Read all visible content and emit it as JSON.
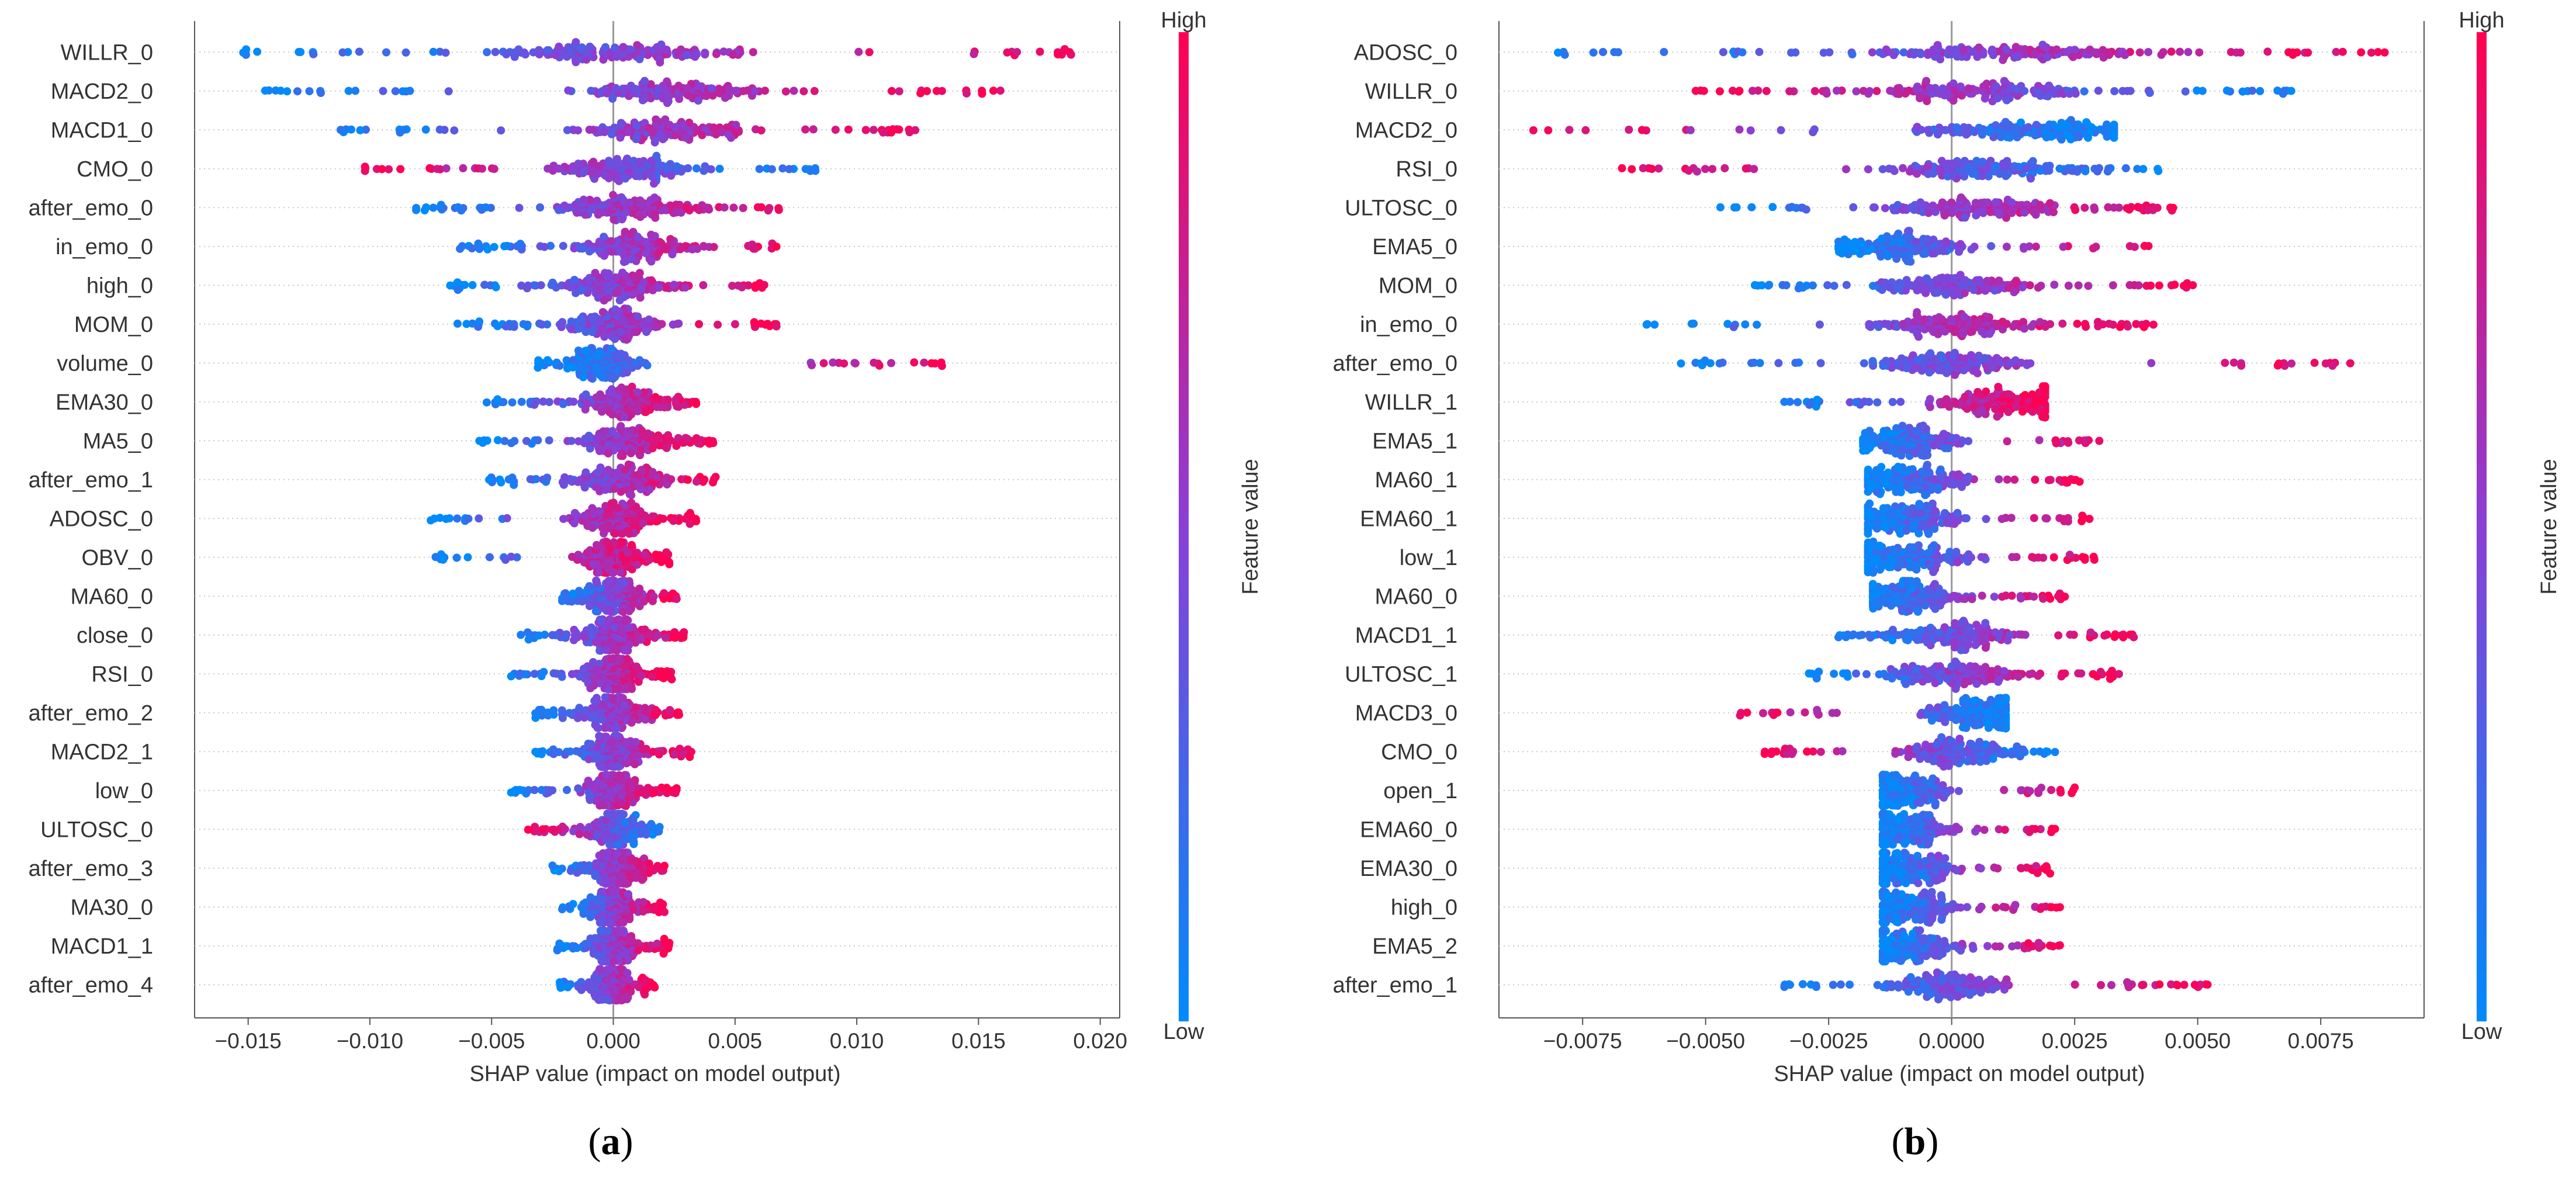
{
  "chart_data": [
    {
      "type": "scatter",
      "subtype": "shap_beeswarm",
      "panel_label": "(a)",
      "panel_letter": "a",
      "xlabel": "SHAP value (impact on model output)",
      "xlim": [
        -0.0172,
        0.0208
      ],
      "xticks": [
        -0.015,
        -0.01,
        -0.005,
        0.0,
        0.005,
        0.01,
        0.015,
        0.02
      ],
      "xtick_labels": [
        "−0.015",
        "−0.010",
        "−0.005",
        "0.000",
        "0.005",
        "0.010",
        "0.015",
        "0.020"
      ],
      "colorbar": {
        "label": "Feature value",
        "high": "High",
        "low": "Low",
        "low_color": "#008bfb",
        "high_color": "#ff0052"
      },
      "features": [
        {
          "name": "WILLR_0",
          "min": -0.0152,
          "max": 0.0188,
          "center": 0.0,
          "spread": 0.004,
          "corr": 1
        },
        {
          "name": "MACD2_0",
          "min": -0.0143,
          "max": 0.0159,
          "center": 0.0025,
          "spread": 0.003,
          "corr": 1
        },
        {
          "name": "MACD1_0",
          "min": -0.0112,
          "max": 0.0124,
          "center": 0.002,
          "spread": 0.0025,
          "corr": 1
        },
        {
          "name": "CMO_0",
          "min": -0.0102,
          "max": 0.0083,
          "center": 0.0005,
          "spread": 0.002,
          "corr": -1
        },
        {
          "name": "after_emo_0",
          "min": -0.0081,
          "max": 0.0068,
          "center": 0.0005,
          "spread": 0.002,
          "corr": 1
        },
        {
          "name": "in_emo_0",
          "min": -0.0063,
          "max": 0.0067,
          "center": 0.001,
          "spread": 0.0018,
          "corr": 1
        },
        {
          "name": "high_0",
          "min": -0.0067,
          "max": 0.0062,
          "center": 0.0,
          "spread": 0.0018,
          "corr": 1
        },
        {
          "name": "MOM_0",
          "min": -0.0064,
          "max": 0.0067,
          "center": 0.0,
          "spread": 0.0016,
          "corr": 1
        },
        {
          "name": "volume_0",
          "min": -0.0031,
          "max": 0.0135,
          "center": -0.0005,
          "spread": 0.0012,
          "corr": 1
        },
        {
          "name": "EMA30_0",
          "min": -0.0052,
          "max": 0.0034,
          "center": 0.0005,
          "spread": 0.0015,
          "corr": 1
        },
        {
          "name": "MA5_0",
          "min": -0.0055,
          "max": 0.0041,
          "center": 0.0005,
          "spread": 0.0015,
          "corr": 1
        },
        {
          "name": "after_emo_1",
          "min": -0.0051,
          "max": 0.0042,
          "center": 0.0003,
          "spread": 0.0014,
          "corr": 1
        },
        {
          "name": "ADOSC_0",
          "min": -0.0075,
          "max": 0.0034,
          "center": 0.0,
          "spread": 0.0012,
          "corr": 1
        },
        {
          "name": "OBV_0",
          "min": -0.0073,
          "max": 0.0023,
          "center": 0.0,
          "spread": 0.001,
          "corr": 1
        },
        {
          "name": "MA60_0",
          "min": -0.0021,
          "max": 0.0026,
          "center": 0.0,
          "spread": 0.001,
          "corr": 1
        },
        {
          "name": "close_0",
          "min": -0.0038,
          "max": 0.0029,
          "center": 0.0,
          "spread": 0.0012,
          "corr": 1
        },
        {
          "name": "RSI_0",
          "min": -0.0042,
          "max": 0.0024,
          "center": 0.0,
          "spread": 0.0011,
          "corr": 1
        },
        {
          "name": "after_emo_2",
          "min": -0.0032,
          "max": 0.0027,
          "center": 0.0,
          "spread": 0.0011,
          "corr": 1
        },
        {
          "name": "MACD2_1",
          "min": -0.0032,
          "max": 0.0032,
          "center": 0.0,
          "spread": 0.0011,
          "corr": 1
        },
        {
          "name": "low_0",
          "min": -0.0042,
          "max": 0.0026,
          "center": 0.0,
          "spread": 0.001,
          "corr": 1
        },
        {
          "name": "ULTOSC_0",
          "min": -0.0035,
          "max": 0.0019,
          "center": 0.0,
          "spread": 0.001,
          "corr": -1
        },
        {
          "name": "after_emo_3",
          "min": -0.0025,
          "max": 0.0021,
          "center": 0.0,
          "spread": 0.0009,
          "corr": 1
        },
        {
          "name": "MA30_0",
          "min": -0.0021,
          "max": 0.0021,
          "center": 0.0,
          "spread": 0.0008,
          "corr": 1
        },
        {
          "name": "MACD1_1",
          "min": -0.0023,
          "max": 0.0023,
          "center": 0.0,
          "spread": 0.0008,
          "corr": 1
        },
        {
          "name": "after_emo_4",
          "min": -0.0022,
          "max": 0.0017,
          "center": 0.0,
          "spread": 0.0007,
          "corr": 1
        }
      ]
    },
    {
      "type": "scatter",
      "subtype": "shap_beeswarm",
      "panel_label": "(b)",
      "panel_letter": "b",
      "xlabel": "SHAP value (impact on model output)",
      "xlim": [
        -0.0092,
        0.0096
      ],
      "xticks": [
        -0.0075,
        -0.005,
        -0.0025,
        0.0,
        0.0025,
        0.005,
        0.0075
      ],
      "xtick_labels": [
        "−0.0075",
        "−0.0050",
        "−0.0025",
        "0.0000",
        "0.0025",
        "0.0050",
        "0.0075"
      ],
      "colorbar": {
        "label": "Feature value",
        "high": "High",
        "low": "Low",
        "low_color": "#008bfb",
        "high_color": "#ff0052"
      },
      "features": [
        {
          "name": "ADOSC_0",
          "min": -0.008,
          "max": 0.0088,
          "center": 0.001,
          "spread": 0.0022,
          "corr": 1
        },
        {
          "name": "WILLR_0",
          "min": -0.0052,
          "max": 0.0069,
          "center": 0.0005,
          "spread": 0.002,
          "corr": -1
        },
        {
          "name": "MACD2_0",
          "min": -0.0085,
          "max": 0.0033,
          "center": 0.0015,
          "spread": 0.0015,
          "corr": -1
        },
        {
          "name": "RSI_0",
          "min": -0.0067,
          "max": 0.0042,
          "center": 0.0005,
          "spread": 0.0015,
          "corr": -1
        },
        {
          "name": "ULTOSC_0",
          "min": -0.0047,
          "max": 0.0045,
          "center": 0.0005,
          "spread": 0.0014,
          "corr": 1
        },
        {
          "name": "EMA5_0",
          "min": -0.0023,
          "max": 0.004,
          "center": -0.001,
          "spread": 0.001,
          "corr": 1
        },
        {
          "name": "MOM_0",
          "min": -0.004,
          "max": 0.0049,
          "center": 0.0,
          "spread": 0.0012,
          "corr": 1
        },
        {
          "name": "in_emo_0",
          "min": -0.0062,
          "max": 0.0041,
          "center": 0.0,
          "spread": 0.0012,
          "corr": 1
        },
        {
          "name": "after_emo_0",
          "min": -0.0055,
          "max": 0.0081,
          "center": 0.0,
          "spread": 0.0012,
          "corr": 1
        },
        {
          "name": "WILLR_1",
          "min": -0.0034,
          "max": 0.0019,
          "center": 0.001,
          "spread": 0.001,
          "corr": 1
        },
        {
          "name": "EMA5_1",
          "min": -0.0018,
          "max": 0.003,
          "center": -0.0008,
          "spread": 0.0008,
          "corr": 1
        },
        {
          "name": "MA60_1",
          "min": -0.0017,
          "max": 0.0026,
          "center": -0.0008,
          "spread": 0.0008,
          "corr": 1
        },
        {
          "name": "EMA60_1",
          "min": -0.0017,
          "max": 0.0028,
          "center": -0.0008,
          "spread": 0.0008,
          "corr": 1
        },
        {
          "name": "low_1",
          "min": -0.0017,
          "max": 0.0029,
          "center": -0.0008,
          "spread": 0.0008,
          "corr": 1
        },
        {
          "name": "MA60_0",
          "min": -0.0016,
          "max": 0.0023,
          "center": -0.0008,
          "spread": 0.0008,
          "corr": 1
        },
        {
          "name": "MACD1_1",
          "min": -0.0023,
          "max": 0.0037,
          "center": 0.0,
          "spread": 0.001,
          "corr": 1
        },
        {
          "name": "ULTOSC_1",
          "min": -0.0029,
          "max": 0.0034,
          "center": 0.0,
          "spread": 0.001,
          "corr": 1
        },
        {
          "name": "MACD3_0",
          "min": -0.0043,
          "max": 0.0011,
          "center": 0.0005,
          "spread": 0.0008,
          "corr": -1
        },
        {
          "name": "CMO_0",
          "min": -0.0038,
          "max": 0.0021,
          "center": 0.0,
          "spread": 0.0009,
          "corr": -1
        },
        {
          "name": "open_1",
          "min": -0.0014,
          "max": 0.0025,
          "center": -0.0008,
          "spread": 0.0007,
          "corr": 1
        },
        {
          "name": "EMA60_0",
          "min": -0.0014,
          "max": 0.0021,
          "center": -0.0008,
          "spread": 0.0007,
          "corr": 1
        },
        {
          "name": "EMA30_0",
          "min": -0.0014,
          "max": 0.002,
          "center": -0.0008,
          "spread": 0.0007,
          "corr": 1
        },
        {
          "name": "high_0",
          "min": -0.0014,
          "max": 0.0022,
          "center": -0.0008,
          "spread": 0.0007,
          "corr": 1
        },
        {
          "name": "EMA5_2",
          "min": -0.0014,
          "max": 0.0022,
          "center": -0.0008,
          "spread": 0.0007,
          "corr": 1
        },
        {
          "name": "after_emo_1",
          "min": -0.0034,
          "max": 0.0052,
          "center": 0.0,
          "spread": 0.0009,
          "corr": 1
        }
      ]
    }
  ]
}
